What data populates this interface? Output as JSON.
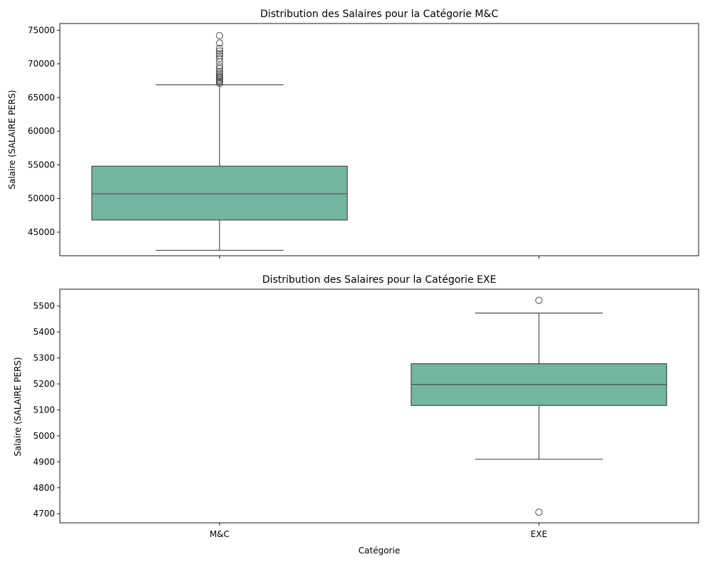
{
  "chart_data": [
    {
      "type": "box",
      "title": "Distribution des Salaires pour la Catégorie M&C",
      "ylabel": "Salaire (SALAIRE PERS)",
      "xlabel": "",
      "categories": [
        "M&C",
        "EXE"
      ],
      "ylim": [
        41500,
        76000
      ],
      "yticks": [
        45000,
        50000,
        55000,
        60000,
        65000,
        70000,
        75000
      ],
      "grid": false,
      "box_color": "#72b5a1",
      "line_color": "#4d4d4d",
      "boxes": [
        {
          "category": "M&C",
          "whisker_low": 42300,
          "q1": 46800,
          "median": 50700,
          "q3": 54800,
          "whisker_high": 66900,
          "outliers": [
            67100,
            67300,
            67500,
            67700,
            67900,
            68100,
            68300,
            68600,
            68900,
            69300,
            69700,
            70300,
            70800,
            71200,
            71500,
            71900,
            72300,
            73100,
            74200
          ]
        }
      ]
    },
    {
      "type": "box",
      "title": "Distribution des Salaires pour la Catégorie EXE",
      "ylabel": "Salaire (SALAIRE PERS)",
      "xlabel": "Catégorie",
      "categories": [
        "M&C",
        "EXE"
      ],
      "ylim": [
        4665,
        5565
      ],
      "yticks": [
        4700,
        4800,
        4900,
        5000,
        5100,
        5200,
        5300,
        5400,
        5500
      ],
      "grid": false,
      "box_color": "#72b5a1",
      "line_color": "#4d4d4d",
      "boxes": [
        {
          "category": "EXE",
          "whisker_low": 4910,
          "q1": 5117,
          "median": 5198,
          "q3": 5278,
          "whisker_high": 5473,
          "outliers": [
            4706,
            5522
          ]
        }
      ]
    }
  ]
}
